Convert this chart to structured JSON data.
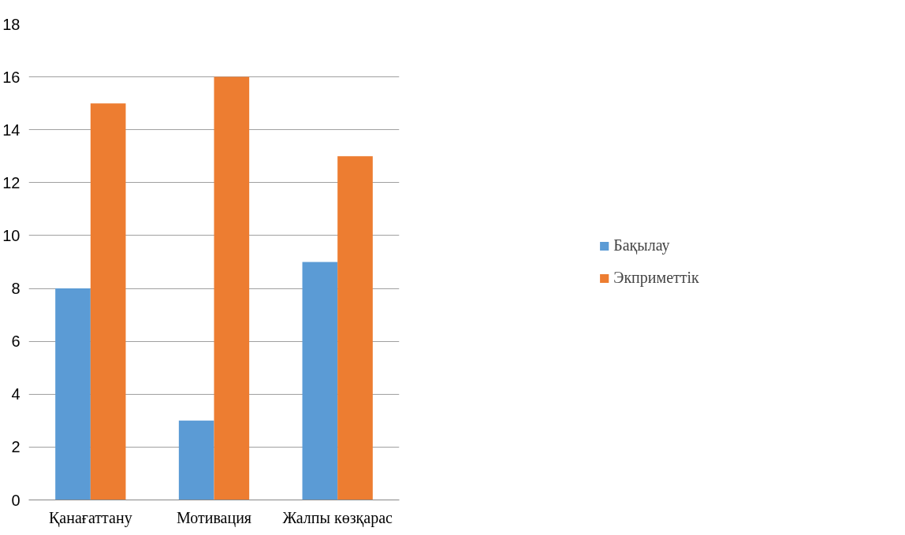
{
  "chart_data": {
    "type": "bar",
    "categories": [
      "Қанағаттану",
      "Мотивация",
      "Жалпы көзқарас"
    ],
    "series": [
      {
        "name": "Бақылау",
        "color": "#5b9bd5",
        "values": [
          8,
          3,
          9
        ]
      },
      {
        "name": "Экприметтік",
        "color": "#ed7d31",
        "values": [
          15,
          16,
          13
        ]
      }
    ],
    "ylim": [
      0,
      18
    ],
    "yticks": [
      0,
      2,
      4,
      6,
      8,
      10,
      12,
      14,
      16,
      18
    ],
    "grid": "y",
    "legend": "right"
  }
}
